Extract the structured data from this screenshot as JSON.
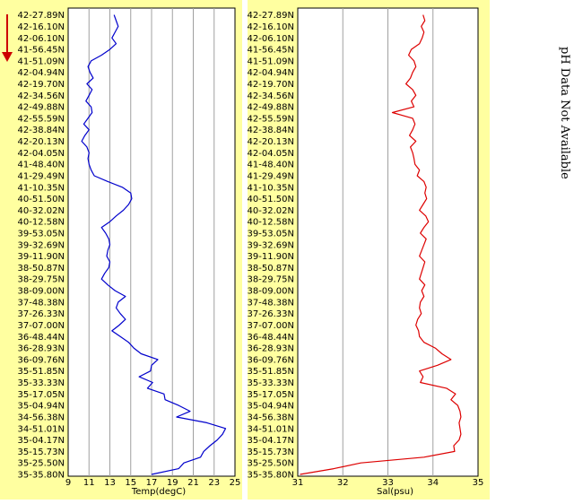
{
  "note": "pH Data Not Available",
  "colors": {
    "panel": "#ffffa0",
    "grid": "#a0a0a0",
    "arrow": "#cc0000"
  },
  "chart_data": [
    {
      "type": "line",
      "xlabel": "Temp(degC)",
      "xlim": [
        9,
        25
      ],
      "xticks": [
        9,
        11,
        13,
        15,
        17,
        19,
        21,
        23,
        25
      ],
      "grid": "vertical",
      "color": "#0000cc",
      "ycategories": [
        "42-27.89N",
        "42-16.10N",
        "42-06.10N",
        "41-56.45N",
        "41-51.09N",
        "42-04.94N",
        "42-19.70N",
        "42-34.56N",
        "42-49.88N",
        "42-55.59N",
        "42-38.84N",
        "42-20.13N",
        "42-04.05N",
        "41-48.40N",
        "41-29.49N",
        "41-10.35N",
        "40-51.50N",
        "40-32.02N",
        "40-12.58N",
        "39-53.05N",
        "39-32.69N",
        "39-11.90N",
        "38-50.87N",
        "38-29.75N",
        "38-09.00N",
        "37-48.38N",
        "37-26.33N",
        "37-07.00N",
        "36-48.44N",
        "36-28.93N",
        "36-09.76N",
        "35-51.85N",
        "35-33.33N",
        "35-17.05N",
        "35-04.94N",
        "34-56.38N",
        "34-51.01N",
        "35-04.17N",
        "35-15.73N",
        "35-25.50N",
        "35-35.80N"
      ],
      "y": [
        0,
        0.5,
        1,
        1.5,
        2,
        2.5,
        3,
        3.5,
        4,
        4.5,
        5,
        5.5,
        6,
        6.5,
        7,
        7.5,
        8,
        8.5,
        9,
        9.5,
        10,
        10.5,
        11,
        11.5,
        12,
        12.5,
        13,
        13.5,
        14,
        14.5,
        15,
        15.5,
        16,
        16.5,
        17,
        17.5,
        18,
        18.5,
        19,
        19.5,
        20,
        20.5,
        21,
        21.5,
        22,
        22.5,
        23,
        23.5,
        24,
        24.5,
        25,
        25.5,
        26,
        26.5,
        27,
        27.5,
        28,
        28.5,
        29,
        29.5,
        30,
        30.5,
        31,
        31.5,
        32,
        32.5,
        33,
        33.5,
        34,
        34.5,
        35,
        35.5,
        36,
        36.5,
        37,
        37.5,
        38,
        38.5,
        39,
        39.5,
        40
      ],
      "values": [
        13.4,
        13.6,
        13.8,
        13.5,
        13.2,
        13.6,
        13.0,
        12.2,
        11.2,
        10.9,
        11.1,
        11.4,
        10.8,
        11.3,
        11.0,
        10.7,
        11.2,
        11.3,
        10.9,
        10.5,
        11.0,
        10.6,
        10.3,
        10.8,
        11.0,
        10.9,
        11.0,
        11.2,
        11.5,
        12.8,
        14.2,
        15.0,
        15.1,
        14.8,
        14.3,
        13.6,
        13.0,
        12.2,
        12.6,
        12.9,
        13.0,
        12.8,
        12.7,
        13.0,
        12.9,
        12.5,
        12.2,
        12.8,
        13.5,
        14.5,
        13.8,
        13.6,
        14.0,
        14.5,
        13.9,
        13.2,
        14.0,
        14.8,
        15.3,
        16.0,
        17.6,
        17.0,
        16.9,
        15.8,
        17.1,
        16.6,
        18.2,
        18.3,
        19.6,
        20.7,
        19.4,
        22.3,
        24.1,
        23.8,
        23.3,
        22.6,
        22.0,
        21.7,
        20.1,
        19.6,
        17.0
      ],
      "plot_top_frac": 0.09
    },
    {
      "type": "line",
      "xlabel": "Sal(psu)",
      "xlim": [
        31,
        35
      ],
      "xticks": [
        31,
        32,
        33,
        34,
        35
      ],
      "grid": "vertical",
      "color": "#dd0000",
      "ycategories": [
        "42-27.89N",
        "42-16.10N",
        "42-06.10N",
        "41-56.45N",
        "41-51.09N",
        "42-04.94N",
        "42-19.70N",
        "42-34.56N",
        "42-49.88N",
        "42-55.59N",
        "42-38.84N",
        "42-20.13N",
        "42-04.05N",
        "41-48.40N",
        "41-29.49N",
        "41-10.35N",
        "40-51.50N",
        "40-32.02N",
        "40-12.58N",
        "39-53.05N",
        "39-32.69N",
        "39-11.90N",
        "38-50.87N",
        "38-29.75N",
        "38-09.00N",
        "37-48.38N",
        "37-26.33N",
        "37-07.00N",
        "36-48.44N",
        "36-28.93N",
        "36-09.76N",
        "35-51.85N",
        "35-33.33N",
        "35-17.05N",
        "35-04.94N",
        "34-56.38N",
        "34-51.01N",
        "35-04.17N",
        "35-15.73N",
        "35-25.50N",
        "35-35.80N"
      ],
      "y": [
        0,
        0.5,
        1,
        1.5,
        2,
        2.5,
        3,
        3.5,
        4,
        4.5,
        5,
        5.5,
        6,
        6.5,
        7,
        7.5,
        8,
        8.5,
        9,
        9.5,
        10,
        10.5,
        11,
        11.5,
        12,
        12.5,
        13,
        13.5,
        14,
        14.5,
        15,
        15.5,
        16,
        16.5,
        17,
        17.5,
        18,
        18.5,
        19,
        19.5,
        20,
        20.5,
        21,
        21.5,
        22,
        22.5,
        23,
        23.5,
        24,
        24.5,
        25,
        25.5,
        26,
        26.5,
        27,
        27.5,
        28,
        28.5,
        29,
        29.5,
        30,
        30.5,
        31,
        31.5,
        32,
        32.5,
        33,
        33.5,
        34,
        34.5,
        35,
        35.5,
        36,
        36.5,
        37,
        37.5,
        38,
        38.5,
        39,
        39.5,
        40
      ],
      "values": [
        33.78,
        33.82,
        33.74,
        33.8,
        33.76,
        33.7,
        33.52,
        33.46,
        33.58,
        33.62,
        33.55,
        33.5,
        33.4,
        33.55,
        33.62,
        33.52,
        33.58,
        33.1,
        33.55,
        33.6,
        33.55,
        33.48,
        33.62,
        33.5,
        33.55,
        33.58,
        33.6,
        33.7,
        33.65,
        33.8,
        33.85,
        33.82,
        33.86,
        33.78,
        33.7,
        33.84,
        33.9,
        33.8,
        33.72,
        33.85,
        33.8,
        33.75,
        33.7,
        33.82,
        33.78,
        33.74,
        33.7,
        33.82,
        33.75,
        33.8,
        33.72,
        33.7,
        33.74,
        33.66,
        33.62,
        33.68,
        33.7,
        33.8,
        34.05,
        34.2,
        34.4,
        34.1,
        33.7,
        33.78,
        33.72,
        34.3,
        34.5,
        34.4,
        34.55,
        34.6,
        34.62,
        34.58,
        34.6,
        34.62,
        34.58,
        34.46,
        34.48,
        33.8,
        32.4,
        31.8,
        31.05
      ],
      "plot_top_frac": 0.09
    }
  ]
}
